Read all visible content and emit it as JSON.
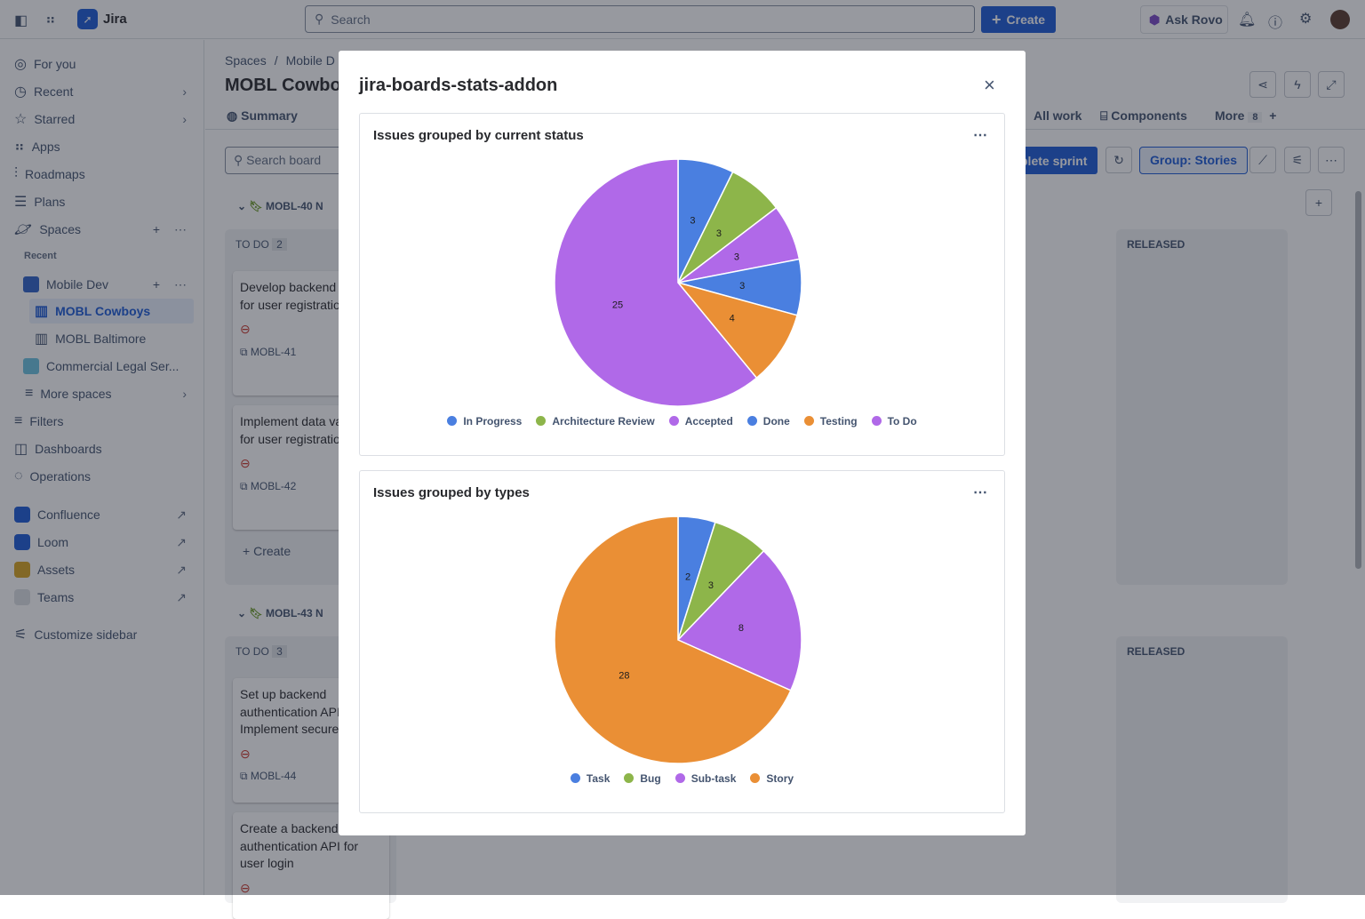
{
  "topbar": {
    "app_name": "Jira",
    "search_placeholder": "Search",
    "create_label": "Create",
    "ask_rovo": "Ask Rovo"
  },
  "sidebar": {
    "items": [
      {
        "label": "For you",
        "icon": "user-circle-icon"
      },
      {
        "label": "Recent",
        "icon": "clock-icon"
      },
      {
        "label": "Starred",
        "icon": "star-icon"
      },
      {
        "label": "Apps",
        "icon": "apps-icon"
      },
      {
        "label": "Roadmaps",
        "icon": "roadmap-icon"
      },
      {
        "label": "Plans",
        "icon": "plans-icon"
      },
      {
        "label": "Spaces",
        "icon": "planet-icon"
      }
    ],
    "recent_label": "Recent",
    "spaces": [
      {
        "label": "Mobile Dev"
      },
      {
        "label": "MOBL Cowboys"
      },
      {
        "label": "MOBL Baltimore"
      },
      {
        "label": "Commercial Legal Ser..."
      },
      {
        "label": "More spaces"
      }
    ],
    "bottom": [
      {
        "label": "Filters"
      },
      {
        "label": "Dashboards"
      },
      {
        "label": "Operations"
      }
    ],
    "apps": [
      {
        "label": "Confluence",
        "color": "#1d5bd6"
      },
      {
        "label": "Loom",
        "color": "#1d5bd6"
      },
      {
        "label": "Assets",
        "color": "#d9a521"
      },
      {
        "label": "Teams",
        "color": "#dcdfe4"
      }
    ],
    "customize": "Customize sidebar"
  },
  "main": {
    "breadcrumb": [
      "Spaces",
      "/",
      "Mobile D"
    ],
    "title": "MOBL Cowboy",
    "tabs": [
      "Summary",
      "All work",
      "Components",
      "More"
    ],
    "more_count": "8",
    "search_board": "Search board",
    "complete_sprint": "plete sprint",
    "group": "Group: Stories",
    "groups": [
      {
        "key": "MOBL-40",
        "letter": "N",
        "todo": "TO DO",
        "count": "2",
        "released": "RELEASED",
        "cards": [
          {
            "title": "Develop backend logic for user registration",
            "key": "MOBL-41"
          },
          {
            "title": "Implement data validation for user registration",
            "key": "MOBL-42"
          }
        ],
        "create": "Create"
      },
      {
        "key": "MOBL-43",
        "letter": "N",
        "todo": "TO DO",
        "count": "3",
        "released": "RELEASED",
        "cards": [
          {
            "title": "Set up backend authentication API Implement secure",
            "key": "MOBL-44"
          },
          {
            "title": "Create a backend authentication API for user login",
            "key": ""
          }
        ]
      }
    ]
  },
  "modal": {
    "title": "jira-boards-stats-addon"
  },
  "chart_data": [
    {
      "type": "pie",
      "title": "Issues grouped by current status",
      "legend": "bottom",
      "categories": [
        "In Progress",
        "Architecture Review",
        "Accepted",
        "Done",
        "Testing",
        "To Do"
      ],
      "values": [
        3,
        3,
        3,
        3,
        4,
        25
      ],
      "colors": [
        "#4a7fe0",
        "#8db54a",
        "#b069e8",
        "#4a7fe0",
        "#ea8f35",
        "#b069e8"
      ]
    },
    {
      "type": "pie",
      "title": "Issues grouped by types",
      "legend": "bottom",
      "categories": [
        "Task",
        "Bug",
        "Sub-task",
        "Story"
      ],
      "values": [
        2,
        3,
        8,
        28
      ],
      "colors": [
        "#4a7fe0",
        "#8db54a",
        "#b069e8",
        "#ea8f35"
      ]
    }
  ]
}
